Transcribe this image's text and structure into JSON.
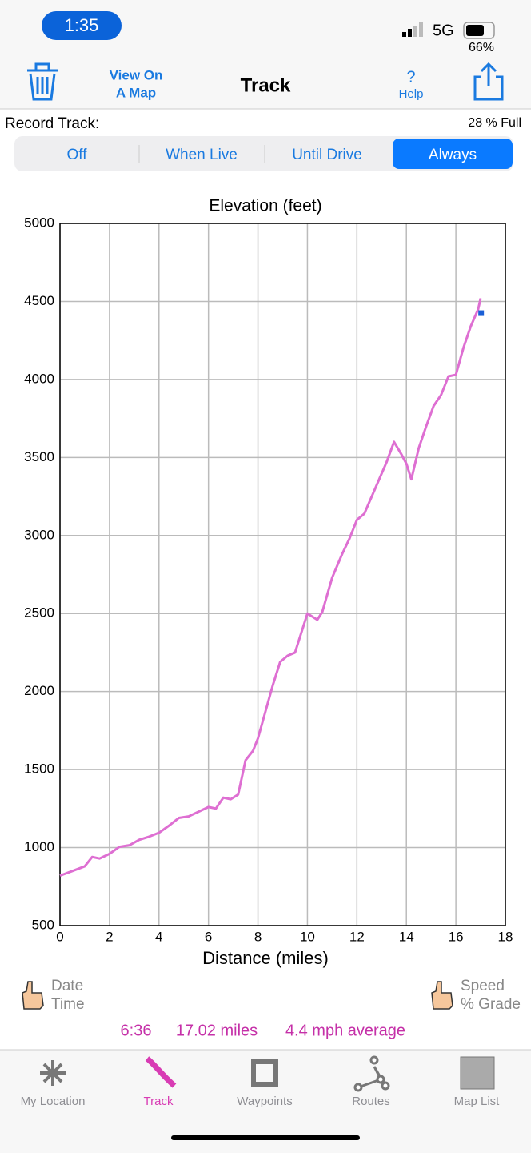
{
  "status_bar": {
    "time": "1:35",
    "network": "5G",
    "battery": "66%"
  },
  "nav": {
    "map_button": [
      "View On",
      "A Map"
    ],
    "title": "Track",
    "help_icon": "?",
    "help": "Help"
  },
  "record": {
    "label": "Record Track:",
    "storage": "28 % Full",
    "options": [
      "Off",
      "When Live",
      "Until Drive",
      "Always"
    ],
    "selected": "Always"
  },
  "chart_data": {
    "type": "line",
    "title": "Elevation (feet)",
    "x_label": "Distance (miles)",
    "x": [
      0,
      0.5,
      1,
      1.3,
      1.6,
      2,
      2.4,
      2.8,
      3.2,
      3.6,
      4,
      4.4,
      4.8,
      5.2,
      5.6,
      6,
      6.3,
      6.6,
      6.9,
      7.2,
      7.5,
      7.8,
      8,
      8.3,
      8.6,
      8.9,
      9.2,
      9.5,
      9.8,
      10,
      10.4,
      10.6,
      11,
      11.4,
      11.7,
      12,
      12.3,
      12.6,
      12.9,
      13.2,
      13.5,
      13.8,
      14,
      14.2,
      14.5,
      14.8,
      15.1,
      15.4,
      15.7,
      16,
      16.3,
      16.6,
      16.9,
      17
    ],
    "values": [
      820,
      850,
      880,
      940,
      930,
      960,
      1005,
      1015,
      1050,
      1070,
      1095,
      1140,
      1190,
      1200,
      1230,
      1260,
      1250,
      1320,
      1310,
      1340,
      1560,
      1620,
      1700,
      1870,
      2040,
      2190,
      2230,
      2250,
      2400,
      2500,
      2460,
      2510,
      2730,
      2880,
      2980,
      3100,
      3140,
      3250,
      3360,
      3470,
      3600,
      3520,
      3460,
      3360,
      3560,
      3700,
      3830,
      3900,
      4020,
      4030,
      4200,
      4340,
      4450,
      4520
    ],
    "color": "#de6fd2",
    "current_position": {
      "x": 17.02,
      "y": 4425,
      "color": "#1a5fd6"
    },
    "xlim": [
      0,
      18
    ],
    "xticks": [
      0,
      2,
      4,
      6,
      8,
      10,
      12,
      14,
      16,
      18
    ],
    "ylim": [
      500,
      5000
    ],
    "yticks": [
      500,
      1000,
      1500,
      2000,
      2500,
      3000,
      3500,
      4000,
      4500,
      5000
    ],
    "grid": true
  },
  "toggles": {
    "left": [
      "Date",
      "Time"
    ],
    "right": [
      "Speed",
      "% Grade"
    ]
  },
  "stats": {
    "duration": "6:36",
    "distance": "17.02 miles",
    "speed": "4.4 mph average"
  },
  "tabs": [
    "My Location",
    "Track",
    "Waypoints",
    "Routes",
    "Map List"
  ],
  "active_tab": "Track"
}
